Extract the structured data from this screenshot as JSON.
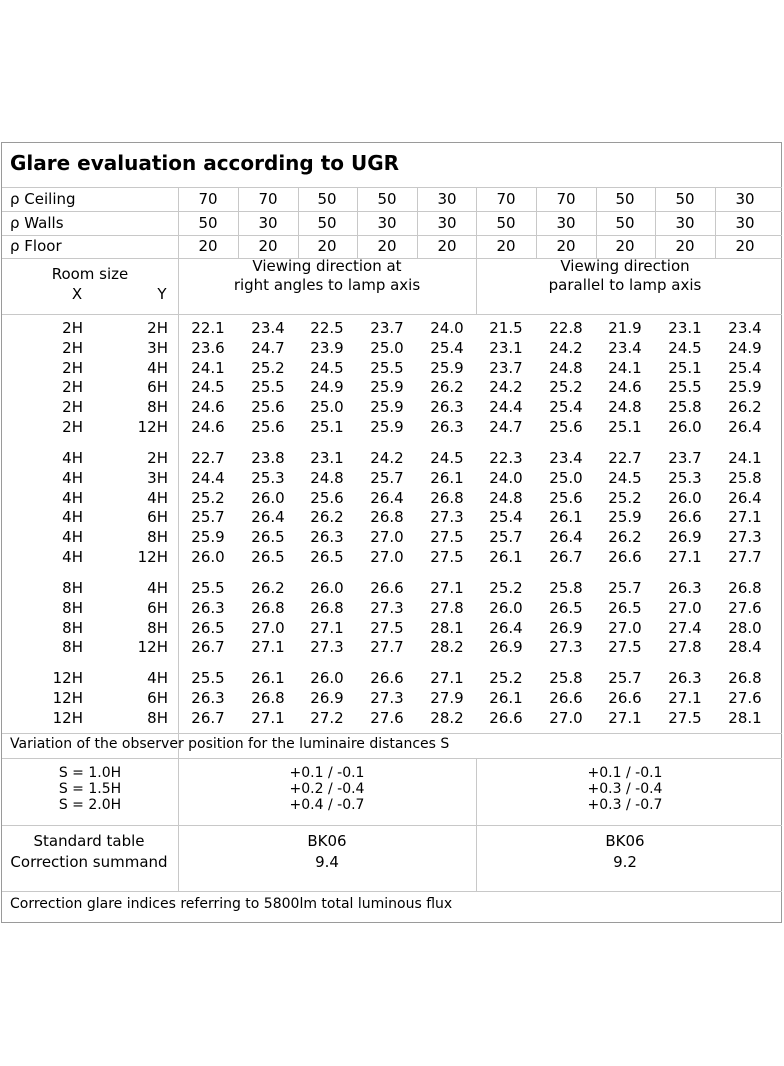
{
  "title": "Glare evaluation according to UGR",
  "reflectances": [
    {
      "label": "ρ Ceiling",
      "values": [
        "70",
        "70",
        "50",
        "50",
        "30",
        "70",
        "70",
        "50",
        "50",
        "30"
      ]
    },
    {
      "label": "ρ Walls",
      "values": [
        "50",
        "30",
        "50",
        "30",
        "30",
        "50",
        "30",
        "50",
        "30",
        "30"
      ]
    },
    {
      "label": "ρ Floor",
      "values": [
        "20",
        "20",
        "20",
        "20",
        "20",
        "20",
        "20",
        "20",
        "20",
        "20"
      ]
    }
  ],
  "room_size": {
    "label": "Room size",
    "x": "X",
    "y": "Y"
  },
  "viewing": {
    "right_angles_line1": "Viewing direction at",
    "right_angles_line2": "right angles to lamp axis",
    "parallel_line1": "Viewing direction",
    "parallel_line2": "parallel to lamp axis"
  },
  "groups": [
    {
      "rows": [
        {
          "x": "2H",
          "y": "2H",
          "v": [
            "22.1",
            "23.4",
            "22.5",
            "23.7",
            "24.0",
            "21.5",
            "22.8",
            "21.9",
            "23.1",
            "23.4"
          ]
        },
        {
          "x": "2H",
          "y": "3H",
          "v": [
            "23.6",
            "24.7",
            "23.9",
            "25.0",
            "25.4",
            "23.1",
            "24.2",
            "23.4",
            "24.5",
            "24.9"
          ]
        },
        {
          "x": "2H",
          "y": "4H",
          "v": [
            "24.1",
            "25.2",
            "24.5",
            "25.5",
            "25.9",
            "23.7",
            "24.8",
            "24.1",
            "25.1",
            "25.4"
          ]
        },
        {
          "x": "2H",
          "y": "6H",
          "v": [
            "24.5",
            "25.5",
            "24.9",
            "25.9",
            "26.2",
            "24.2",
            "25.2",
            "24.6",
            "25.5",
            "25.9"
          ]
        },
        {
          "x": "2H",
          "y": "8H",
          "v": [
            "24.6",
            "25.6",
            "25.0",
            "25.9",
            "26.3",
            "24.4",
            "25.4",
            "24.8",
            "25.8",
            "26.2"
          ]
        },
        {
          "x": "2H",
          "y": "12H",
          "v": [
            "24.6",
            "25.6",
            "25.1",
            "25.9",
            "26.3",
            "24.7",
            "25.6",
            "25.1",
            "26.0",
            "26.4"
          ]
        }
      ]
    },
    {
      "rows": [
        {
          "x": "4H",
          "y": "2H",
          "v": [
            "22.7",
            "23.8",
            "23.1",
            "24.2",
            "24.5",
            "22.3",
            "23.4",
            "22.7",
            "23.7",
            "24.1"
          ]
        },
        {
          "x": "4H",
          "y": "3H",
          "v": [
            "24.4",
            "25.3",
            "24.8",
            "25.7",
            "26.1",
            "24.0",
            "25.0",
            "24.5",
            "25.3",
            "25.8"
          ]
        },
        {
          "x": "4H",
          "y": "4H",
          "v": [
            "25.2",
            "26.0",
            "25.6",
            "26.4",
            "26.8",
            "24.8",
            "25.6",
            "25.2",
            "26.0",
            "26.4"
          ]
        },
        {
          "x": "4H",
          "y": "6H",
          "v": [
            "25.7",
            "26.4",
            "26.2",
            "26.8",
            "27.3",
            "25.4",
            "26.1",
            "25.9",
            "26.6",
            "27.1"
          ]
        },
        {
          "x": "4H",
          "y": "8H",
          "v": [
            "25.9",
            "26.5",
            "26.3",
            "27.0",
            "27.5",
            "25.7",
            "26.4",
            "26.2",
            "26.9",
            "27.3"
          ]
        },
        {
          "x": "4H",
          "y": "12H",
          "v": [
            "26.0",
            "26.5",
            "26.5",
            "27.0",
            "27.5",
            "26.1",
            "26.7",
            "26.6",
            "27.1",
            "27.7"
          ]
        }
      ]
    },
    {
      "rows": [
        {
          "x": "8H",
          "y": "4H",
          "v": [
            "25.5",
            "26.2",
            "26.0",
            "26.6",
            "27.1",
            "25.2",
            "25.8",
            "25.7",
            "26.3",
            "26.8"
          ]
        },
        {
          "x": "8H",
          "y": "6H",
          "v": [
            "26.3",
            "26.8",
            "26.8",
            "27.3",
            "27.8",
            "26.0",
            "26.5",
            "26.5",
            "27.0",
            "27.6"
          ]
        },
        {
          "x": "8H",
          "y": "8H",
          "v": [
            "26.5",
            "27.0",
            "27.1",
            "27.5",
            "28.1",
            "26.4",
            "26.9",
            "27.0",
            "27.4",
            "28.0"
          ]
        },
        {
          "x": "8H",
          "y": "12H",
          "v": [
            "26.7",
            "27.1",
            "27.3",
            "27.7",
            "28.2",
            "26.9",
            "27.3",
            "27.5",
            "27.8",
            "28.4"
          ]
        }
      ]
    },
    {
      "rows": [
        {
          "x": "12H",
          "y": "4H",
          "v": [
            "25.5",
            "26.1",
            "26.0",
            "26.6",
            "27.1",
            "25.2",
            "25.8",
            "25.7",
            "26.3",
            "26.8"
          ]
        },
        {
          "x": "12H",
          "y": "6H",
          "v": [
            "26.3",
            "26.8",
            "26.9",
            "27.3",
            "27.9",
            "26.1",
            "26.6",
            "26.6",
            "27.1",
            "27.6"
          ]
        },
        {
          "x": "12H",
          "y": "8H",
          "v": [
            "26.7",
            "27.1",
            "27.2",
            "27.6",
            "28.2",
            "26.6",
            "27.0",
            "27.1",
            "27.5",
            "28.1"
          ]
        }
      ]
    }
  ],
  "variation": {
    "heading": "Variation of the observer position for the luminaire distances S",
    "labels": [
      "S = 1.0H",
      "S = 1.5H",
      "S = 2.0H"
    ],
    "right_angles": [
      "+0.1 / -0.1",
      "+0.2 / -0.4",
      "+0.4 / -0.7"
    ],
    "parallel": [
      "+0.1 / -0.1",
      "+0.3 / -0.4",
      "+0.3 / -0.7"
    ]
  },
  "standard": {
    "table_label": "Standard table",
    "correction_label": "Correction summand",
    "right_angles": {
      "table": "BK06",
      "summand": "9.4"
    },
    "parallel": {
      "table": "BK06",
      "summand": "9.2"
    }
  },
  "footer": "Correction glare indices referring to 5800lm total luminous flux"
}
